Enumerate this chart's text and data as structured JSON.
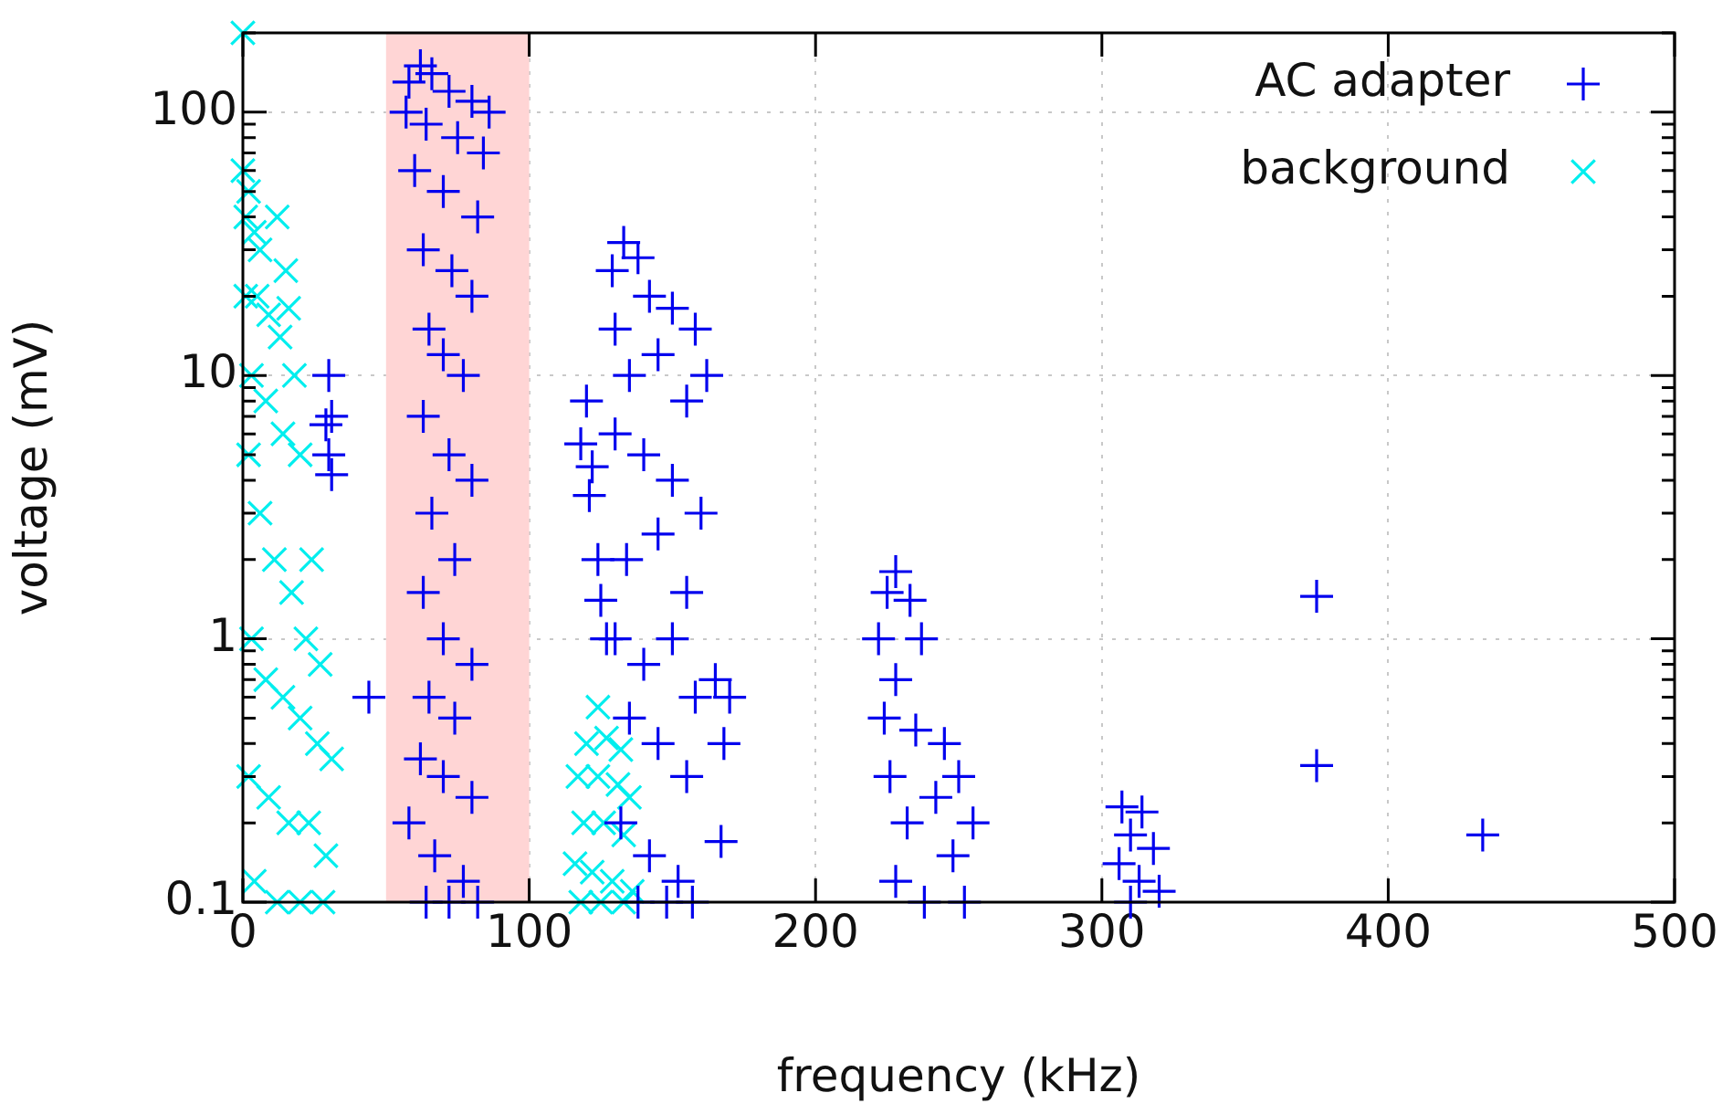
{
  "chart_data": {
    "type": "scatter",
    "xlabel": "frequency (kHz)",
    "ylabel": "voltage (mV)",
    "log": "y",
    "xlim": [
      0,
      500
    ],
    "xticks": [
      0,
      100,
      200,
      300,
      400,
      500
    ],
    "ylim": [
      0.1,
      200
    ],
    "yticks": [
      0.1,
      {
        "value": 0.2,
        "label": null
      },
      {
        "value": 0.3,
        "label": null
      },
      {
        "value": 0.4,
        "label": null
      },
      {
        "value": 0.5,
        "label": null
      },
      {
        "value": 0.6,
        "label": null
      },
      {
        "value": 0.7,
        "label": null
      },
      {
        "value": 0.8,
        "label": null
      },
      {
        "value": 0.9,
        "label": null
      },
      1,
      {
        "value": 2,
        "label": null
      },
      {
        "value": 3,
        "label": null
      },
      {
        "value": 4,
        "label": null
      },
      {
        "value": 5,
        "label": null
      },
      {
        "value": 6,
        "label": null
      },
      {
        "value": 7,
        "label": null
      },
      {
        "value": 8,
        "label": null
      },
      {
        "value": 9,
        "label": null
      },
      10,
      {
        "value": 20,
        "label": null
      },
      {
        "value": 30,
        "label": null
      },
      {
        "value": 40,
        "label": null
      },
      {
        "value": 50,
        "label": null
      },
      {
        "value": 60,
        "label": null
      },
      {
        "value": 70,
        "label": null
      },
      {
        "value": 80,
        "label": null
      },
      {
        "value": 90,
        "label": null
      },
      100,
      {
        "value": 200,
        "label": null
      }
    ],
    "grid": true,
    "legend": "top right",
    "marker": "cross",
    "bands": [
      {
        "axis": "x",
        "from": 50,
        "to": 100,
        "color": "#ffd5d5"
      }
    ],
    "series": [
      {
        "name": "AC adapter",
        "color": "#0000ee",
        "x": [
          62,
          58,
          66,
          72,
          80,
          86,
          57,
          64,
          75,
          84,
          60,
          70,
          82,
          63,
          73,
          80,
          65,
          70,
          77,
          63,
          72,
          80,
          66,
          74,
          63,
          70,
          80,
          65,
          74,
          62,
          70,
          80,
          58,
          67,
          77,
          64,
          72,
          82,
          133,
          129,
          138,
          142,
          130,
          150,
          158,
          162,
          135,
          145,
          155,
          130,
          140,
          150,
          160,
          134,
          145,
          155,
          130,
          140,
          150,
          158,
          135,
          145,
          155,
          132,
          142,
          152,
          138,
          148,
          157,
          120,
          118,
          122,
          121,
          124,
          125,
          127,
          165,
          170,
          168,
          167,
          228,
          225,
          233,
          222,
          237,
          228,
          224,
          235,
          245,
          250,
          242,
          255,
          226,
          232,
          248,
          228,
          238,
          252,
          307,
          314,
          310,
          318,
          306,
          313,
          320,
          310,
          30,
          31,
          29,
          30,
          31,
          44,
          375,
          375,
          433
        ],
        "values": [
          150,
          130,
          140,
          120,
          110,
          100,
          100,
          90,
          80,
          70,
          60,
          50,
          40,
          30,
          25,
          20,
          15,
          12,
          10,
          7,
          5,
          4,
          3,
          2,
          1.5,
          1,
          0.8,
          0.6,
          0.5,
          0.35,
          0.3,
          0.25,
          0.2,
          0.15,
          0.12,
          0.1,
          0.1,
          0.1,
          32,
          25,
          28,
          20,
          15,
          18,
          15,
          10,
          10,
          12,
          8,
          6,
          5,
          4,
          3,
          2,
          2.5,
          1.5,
          1,
          0.8,
          1,
          0.6,
          0.5,
          0.4,
          0.3,
          0.2,
          0.15,
          0.12,
          0.1,
          0.1,
          0.1,
          8,
          5.5,
          4.5,
          3.5,
          2,
          1.4,
          1,
          0.7,
          0.6,
          0.4,
          0.17,
          1.8,
          1.5,
          1.4,
          1,
          1,
          0.7,
          0.5,
          0.45,
          0.4,
          0.3,
          0.25,
          0.2,
          0.3,
          0.2,
          0.15,
          0.12,
          0.1,
          0.1,
          0.23,
          0.22,
          0.18,
          0.16,
          0.14,
          0.12,
          0.11,
          0.1,
          10,
          7,
          6.5,
          5,
          4.2,
          0.6,
          1.45,
          0.33,
          0.18
        ]
      },
      {
        "name": "background",
        "color": "#00eeee",
        "x": [
          0,
          0,
          2,
          1,
          4,
          6,
          12,
          15,
          16,
          1,
          5,
          9,
          13,
          18,
          3,
          8,
          14,
          20,
          24,
          2,
          6,
          11,
          17,
          22,
          27,
          3,
          8,
          14,
          20,
          26,
          31,
          2,
          9,
          16,
          23,
          29,
          4,
          12,
          20,
          28,
          124,
          120,
          127,
          132,
          117,
          124,
          131,
          135,
          119,
          126,
          133,
          116,
          122,
          129,
          136,
          118,
          125,
          133
        ],
        "values": [
          200,
          60,
          50,
          40,
          35,
          30,
          40,
          25,
          18,
          20,
          20,
          17,
          14,
          10,
          10,
          8,
          6,
          5,
          2,
          5,
          3,
          2,
          1.5,
          1,
          0.8,
          1,
          0.7,
          0.6,
          0.5,
          0.4,
          0.35,
          0.3,
          0.25,
          0.2,
          0.2,
          0.15,
          0.12,
          0.1,
          0.1,
          0.1,
          0.55,
          0.4,
          0.42,
          0.38,
          0.3,
          0.3,
          0.28,
          0.25,
          0.2,
          0.2,
          0.18,
          0.14,
          0.13,
          0.12,
          0.11,
          0.1,
          0.1,
          0.1
        ]
      }
    ]
  }
}
